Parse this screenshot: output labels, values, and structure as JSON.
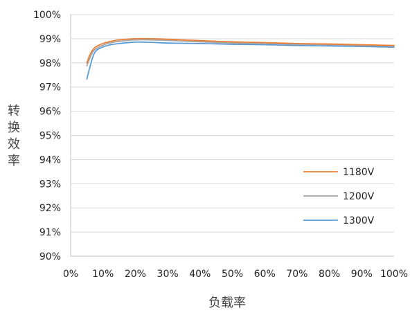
{
  "chart_data": {
    "type": "line",
    "title": "",
    "xlabel": "负载率",
    "ylabel": "转换效率",
    "x": [
      0.05,
      0.06,
      0.07,
      0.08,
      0.1,
      0.12,
      0.15,
      0.2,
      0.25,
      0.3,
      0.4,
      0.5,
      0.6,
      0.7,
      0.8,
      0.9,
      1.0
    ],
    "xlim": [
      0,
      1
    ],
    "ylim": [
      0.9,
      1.0
    ],
    "x_ticks": [
      "0%",
      "10%",
      "20%",
      "30%",
      "40%",
      "50%",
      "60%",
      "70%",
      "80%",
      "90%",
      "100%"
    ],
    "y_ticks": [
      "90%",
      "91%",
      "92%",
      "93%",
      "94%",
      "95%",
      "96%",
      "97%",
      "98%",
      "99%",
      "100%"
    ],
    "grid": true,
    "legend_position": "right",
    "series": [
      {
        "name": "1180V",
        "color": "#ED7D31",
        "values": [
          0.98,
          0.9835,
          0.9857,
          0.9868,
          0.988,
          0.9888,
          0.9895,
          0.99,
          0.99,
          0.9898,
          0.9892,
          0.9887,
          0.9884,
          0.988,
          0.9878,
          0.9875,
          0.9872
        ]
      },
      {
        "name": "1200V",
        "color": "#A5A5A5",
        "values": [
          0.9788,
          0.9822,
          0.9848,
          0.986,
          0.9873,
          0.9882,
          0.9889,
          0.9895,
          0.9895,
          0.9893,
          0.9887,
          0.9882,
          0.988,
          0.9877,
          0.9875,
          0.9872,
          0.987
        ]
      },
      {
        "name": "1300V",
        "color": "#5B9BD5",
        "values": [
          0.9733,
          0.9785,
          0.983,
          0.9852,
          0.9866,
          0.9874,
          0.988,
          0.9886,
          0.9885,
          0.9882,
          0.988,
          0.9877,
          0.9875,
          0.9872,
          0.987,
          0.9868,
          0.9865
        ]
      }
    ]
  }
}
